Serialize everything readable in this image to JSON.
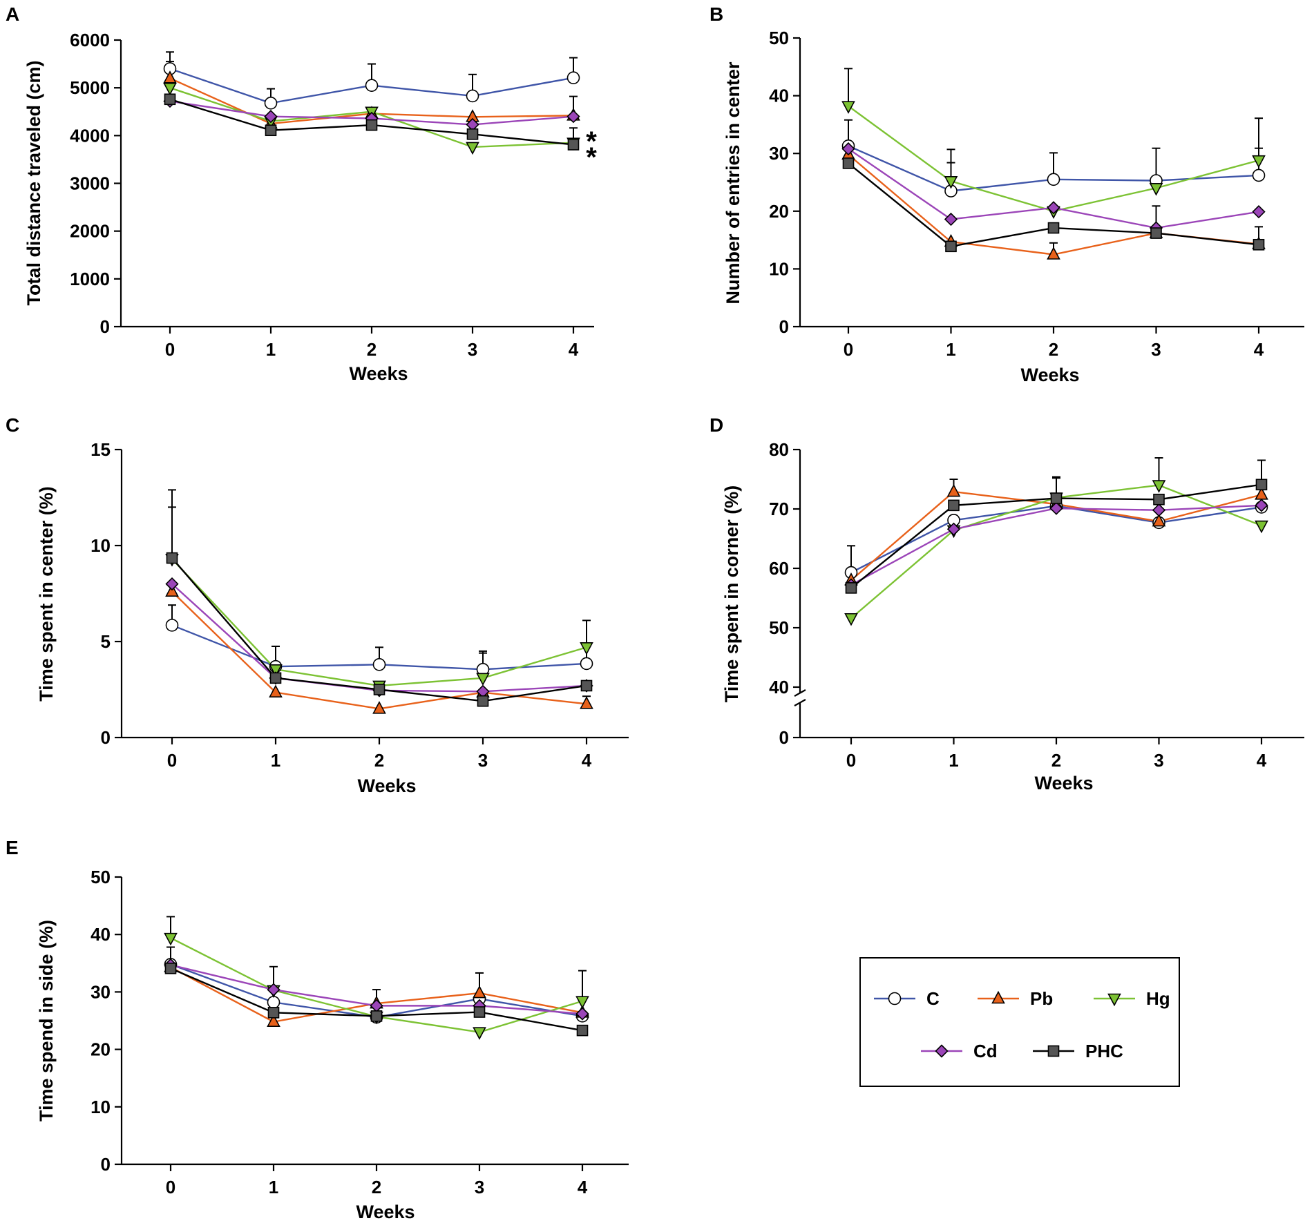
{
  "chart_data": [
    {
      "id": "A",
      "type": "line",
      "panel_label": "A",
      "xlabel": "Weeks",
      "ylabel": "Total distance traveled (cm)",
      "categories": [
        "0",
        "1",
        "2",
        "3",
        "4"
      ],
      "ylim": [
        0,
        6000
      ],
      "yticks": [
        0,
        1000,
        2000,
        3000,
        4000,
        5000,
        6000
      ],
      "annotations": [
        "*",
        "*"
      ],
      "series": [
        {
          "name": "C",
          "values": [
            5400,
            4680,
            5050,
            4830,
            5210
          ],
          "errors": [
            350,
            300,
            450,
            450,
            420
          ]
        },
        {
          "name": "Pb",
          "values": [
            5200,
            4250,
            4460,
            4390,
            4420
          ],
          "errors": [
            350,
            0,
            0,
            0,
            400
          ]
        },
        {
          "name": "Hg",
          "values": [
            5000,
            4300,
            4500,
            3760,
            3850
          ],
          "errors": [
            0,
            0,
            0,
            0,
            0
          ]
        },
        {
          "name": "Cd",
          "values": [
            4720,
            4400,
            4360,
            4230,
            4400
          ],
          "errors": [
            0,
            0,
            0,
            0,
            0
          ]
        },
        {
          "name": "PHC",
          "values": [
            4760,
            4110,
            4220,
            4030,
            3810
          ],
          "errors": [
            0,
            0,
            0,
            0,
            350
          ]
        }
      ]
    },
    {
      "id": "B",
      "type": "line",
      "panel_label": "B",
      "xlabel": "Weeks",
      "ylabel": "Number of entries in center",
      "categories": [
        "0",
        "1",
        "2",
        "3",
        "4"
      ],
      "ylim": [
        0,
        50
      ],
      "yticks": [
        0,
        10,
        20,
        30,
        40,
        50
      ],
      "series": [
        {
          "name": "C",
          "values": [
            31.3,
            23.5,
            25.5,
            25.3,
            26.2
          ],
          "errors": [
            4.5,
            4.9,
            4.6,
            5.6,
            4.7
          ]
        },
        {
          "name": "Pb",
          "values": [
            29.8,
            14.7,
            12.5,
            16.2,
            14.3
          ],
          "errors": [
            0,
            0,
            2,
            0,
            3
          ]
        },
        {
          "name": "Hg",
          "values": [
            38.2,
            25.2,
            20.0,
            24.0,
            28.8
          ],
          "errors": [
            6.5,
            5.5,
            0,
            0,
            7.3
          ]
        },
        {
          "name": "Cd",
          "values": [
            30.8,
            18.6,
            20.6,
            17.1,
            19.9
          ],
          "errors": [
            0,
            0,
            0,
            3.8,
            0
          ]
        },
        {
          "name": "PHC",
          "values": [
            28.3,
            13.9,
            17.1,
            16.2,
            14.2
          ],
          "errors": [
            0,
            0,
            0,
            0,
            0
          ]
        }
      ]
    },
    {
      "id": "C",
      "type": "line",
      "panel_label": "C",
      "xlabel": "Weeks",
      "ylabel": "Time spent in center (%)",
      "categories": [
        "0",
        "1",
        "2",
        "3",
        "4"
      ],
      "ylim": [
        0,
        15
      ],
      "yticks": [
        0,
        5,
        10,
        15
      ],
      "series": [
        {
          "name": "C",
          "values": [
            5.85,
            3.7,
            3.8,
            3.55,
            3.85
          ],
          "errors": [
            1.05,
            1.05,
            0.9,
            0.95,
            1.0
          ]
        },
        {
          "name": "Pb",
          "values": [
            7.6,
            2.35,
            1.5,
            2.35,
            1.75
          ],
          "errors": [
            0,
            0,
            0,
            0,
            0.4
          ]
        },
        {
          "name": "Hg",
          "values": [
            9.3,
            3.55,
            2.7,
            3.1,
            4.7
          ],
          "errors": [
            3.6,
            1.2,
            0,
            1.3,
            1.4
          ]
        },
        {
          "name": "Cd",
          "values": [
            8.0,
            3.1,
            2.45,
            2.4,
            2.7
          ],
          "errors": [
            0,
            0,
            0,
            0,
            0
          ]
        },
        {
          "name": "PHC",
          "values": [
            9.35,
            3.1,
            2.5,
            1.9,
            2.7
          ],
          "errors": [
            2.65,
            0,
            0,
            0,
            0
          ]
        }
      ]
    },
    {
      "id": "D",
      "type": "line",
      "panel_label": "D",
      "xlabel": "Weeks",
      "ylabel": "Time spent in corner (%)",
      "categories": [
        "0",
        "1",
        "2",
        "3",
        "4"
      ],
      "ylim": [
        40,
        80
      ],
      "axis_break": true,
      "yticks": [
        0,
        40,
        50,
        60,
        70,
        80
      ],
      "series": [
        {
          "name": "C",
          "values": [
            59.3,
            68.1,
            70.5,
            67.7,
            70.3
          ],
          "errors": [
            4.5,
            0,
            0,
            0,
            0
          ]
        },
        {
          "name": "Pb",
          "values": [
            58.0,
            72.9,
            70.8,
            67.9,
            72.4
          ],
          "errors": [
            0,
            2.1,
            4.6,
            0,
            0
          ]
        },
        {
          "name": "Hg",
          "values": [
            51.6,
            66.4,
            71.9,
            74.0,
            67.2
          ],
          "errors": [
            0,
            0,
            3.3,
            4.6,
            0
          ]
        },
        {
          "name": "Cd",
          "values": [
            57.2,
            66.6,
            70.1,
            69.8,
            70.6
          ],
          "errors": [
            0,
            0,
            0,
            0,
            0
          ]
        },
        {
          "name": "PHC",
          "values": [
            56.7,
            70.6,
            71.8,
            71.6,
            74.1
          ],
          "errors": [
            0,
            0,
            0,
            0,
            4.1
          ]
        }
      ]
    },
    {
      "id": "E",
      "type": "line",
      "panel_label": "E",
      "xlabel": "Weeks",
      "ylabel": "Time spend in side (%)",
      "categories": [
        "0",
        "1",
        "2",
        "3",
        "4"
      ],
      "ylim": [
        0,
        50
      ],
      "yticks": [
        0,
        10,
        20,
        30,
        40,
        50
      ],
      "series": [
        {
          "name": "C",
          "values": [
            34.8,
            28.2,
            25.6,
            28.8,
            25.8
          ],
          "errors": [
            3,
            0,
            0,
            0,
            0
          ]
        },
        {
          "name": "Pb",
          "values": [
            34.3,
            24.8,
            28.0,
            29.8,
            26.4
          ],
          "errors": [
            0,
            0,
            0,
            3.5,
            0
          ]
        },
        {
          "name": "Hg",
          "values": [
            39.4,
            30.3,
            25.7,
            23.0,
            28.4
          ],
          "errors": [
            3.7,
            4.1,
            4.7,
            0,
            5.3
          ]
        },
        {
          "name": "Cd",
          "values": [
            34.7,
            30.4,
            27.6,
            27.6,
            26.2
          ],
          "errors": [
            0,
            0,
            0,
            0,
            0
          ]
        },
        {
          "name": "PHC",
          "values": [
            34.1,
            26.4,
            25.8,
            26.5,
            23.3
          ],
          "errors": [
            0,
            0,
            0,
            0,
            0
          ]
        }
      ]
    }
  ],
  "legend": {
    "entries": [
      {
        "name": "C",
        "label": "C"
      },
      {
        "name": "Pb",
        "label": "Pb"
      },
      {
        "name": "Hg",
        "label": "Hg"
      },
      {
        "name": "Cd",
        "label": "Cd"
      },
      {
        "name": "PHC",
        "label": "PHC"
      }
    ]
  },
  "style": {
    "series": {
      "C": {
        "line": "#3f55a8",
        "fill": "#ffffff",
        "marker": "circle"
      },
      "Pb": {
        "line": "#e8611a",
        "fill": "#e8611a",
        "marker": "triangle-up"
      },
      "Hg": {
        "line": "#7cc233",
        "fill": "#7cc233",
        "marker": "triangle-down"
      },
      "Cd": {
        "line": "#9b45b8",
        "fill": "#9b45b8",
        "marker": "diamond"
      },
      "PHC": {
        "line": "#000000",
        "fill": "#555555",
        "marker": "square"
      }
    }
  }
}
